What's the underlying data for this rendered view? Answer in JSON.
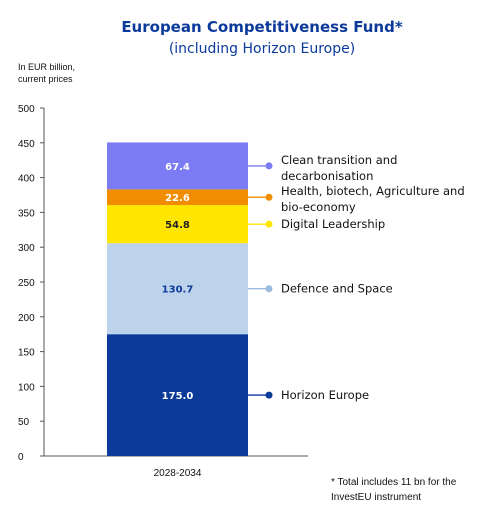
{
  "chart_data": {
    "type": "bar",
    "stacked": true,
    "title": "European Competitiveness Fund*",
    "subtitle": "(including Horizon Europe)",
    "ylabel_lines": [
      "In EUR billion,",
      "current prices"
    ],
    "ylim": [
      0,
      500
    ],
    "yticks": [
      0,
      50,
      100,
      150,
      200,
      250,
      300,
      350,
      400,
      450,
      500
    ],
    "grid": false,
    "legend_placement": "right",
    "categories": [
      "2028-2034"
    ],
    "series": [
      {
        "name": "Horizon Europe",
        "value": 175.0,
        "label": "175.0",
        "color": "#0b3a9a",
        "label_color": "#ffffff"
      },
      {
        "name": "Defence and Space",
        "value": 130.7,
        "label": "130.7",
        "color": "#bdd3ec",
        "label_color": "#0b3a9a"
      },
      {
        "name": "Digital Leadership",
        "value": 54.8,
        "label": "54.8",
        "color": "#ffe600",
        "label_color": "#222222"
      },
      {
        "name": "Health, biotech, Agriculture and bio-economy",
        "legend_lines": [
          "Health, biotech, Agriculture and",
          "bio-economy"
        ],
        "value": 22.6,
        "label": "22.6",
        "color": "#f28c00",
        "label_color": "#ffffff"
      },
      {
        "name": "Clean transition and decarbonisation",
        "legend_lines": [
          "Clean transition and",
          "decarbonisation"
        ],
        "value": 67.4,
        "label": "67.4",
        "color": "#7b7bf3",
        "label_color": "#ffffff"
      }
    ],
    "footnote_lines": [
      "* Total includes 11 bn for the",
      "InvestEU instrument"
    ],
    "colors": {
      "title": "#0b3a9a",
      "axis": "#555555",
      "text": "#111111"
    }
  }
}
